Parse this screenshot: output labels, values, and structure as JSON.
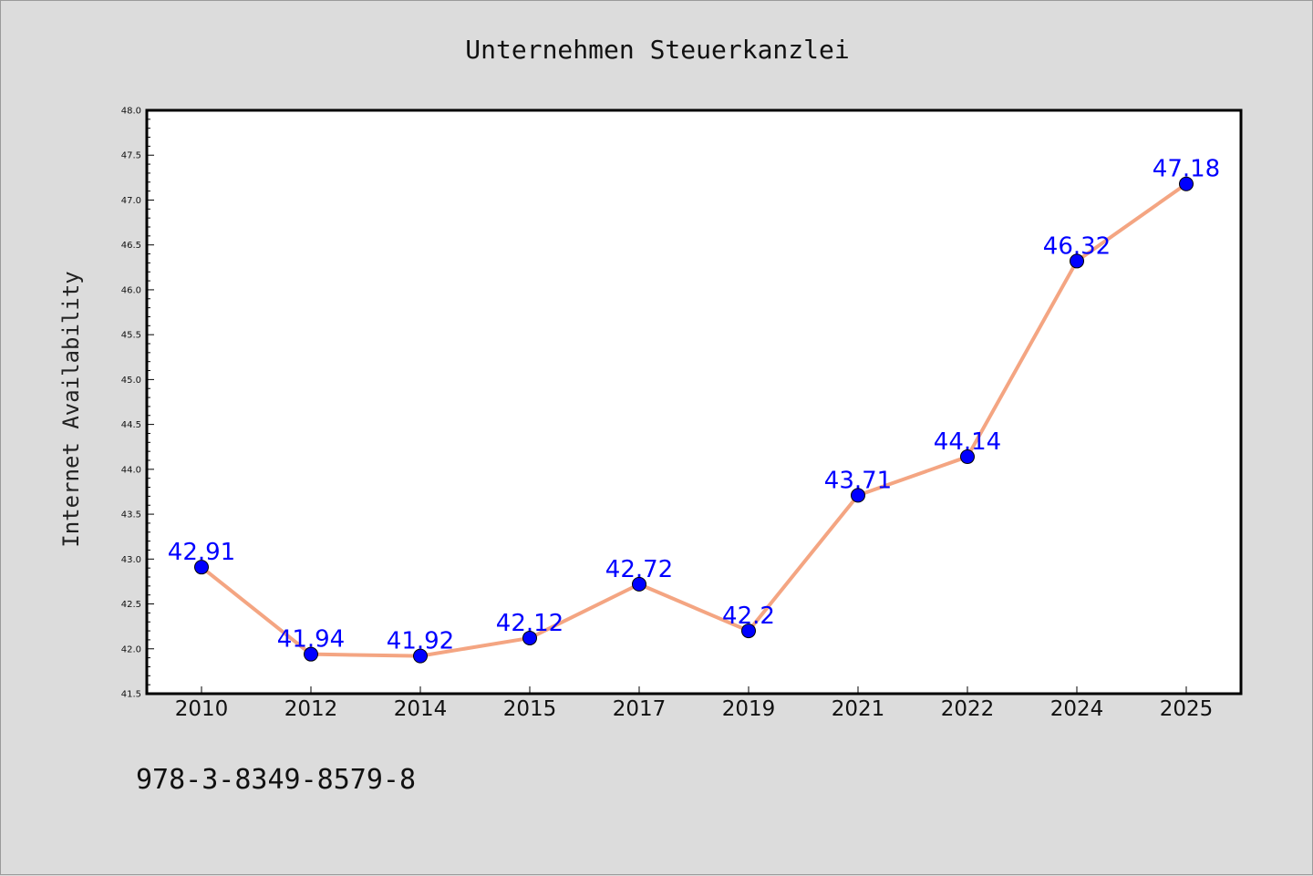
{
  "chart_data": {
    "type": "line",
    "title": "Unternehmen Steuerkanzlei",
    "xlabel": "",
    "ylabel": "Internet Availability",
    "categories": [
      "2010",
      "2012",
      "2014",
      "2015",
      "2017",
      "2019",
      "2021",
      "2022",
      "2024",
      "2025"
    ],
    "series": [
      {
        "values": [
          42.91,
          41.94,
          41.92,
          42.12,
          42.72,
          42.2,
          43.71,
          44.14,
          46.32,
          47.18
        ],
        "data_labels": [
          "42.91",
          "41.94",
          "41.92",
          "42.12",
          "42.72",
          "42.2",
          "43.71",
          "44.14",
          "46.32",
          "47.18"
        ],
        "line_color": "#f4a582",
        "marker_color": "#0000ff"
      }
    ],
    "ylim": [
      41.5,
      48.0
    ],
    "yticks": [
      "41.5",
      "42.0",
      "42.5",
      "43.0",
      "43.5",
      "44.0",
      "44.5",
      "45.0",
      "45.5",
      "46.0",
      "46.5",
      "47.0",
      "47.5",
      "48.0"
    ],
    "ytick_values": [
      41.5,
      42.0,
      42.5,
      43.0,
      43.5,
      44.0,
      44.5,
      45.0,
      45.5,
      46.0,
      46.5,
      47.0,
      47.5,
      48.0
    ],
    "grid": false,
    "legend": "none"
  },
  "footer": {
    "isbn": "978-3-8349-8579-8"
  },
  "colors": {
    "background": "#dcdcdc",
    "plot_background": "#ffffff",
    "label_color": "#0000ff"
  }
}
